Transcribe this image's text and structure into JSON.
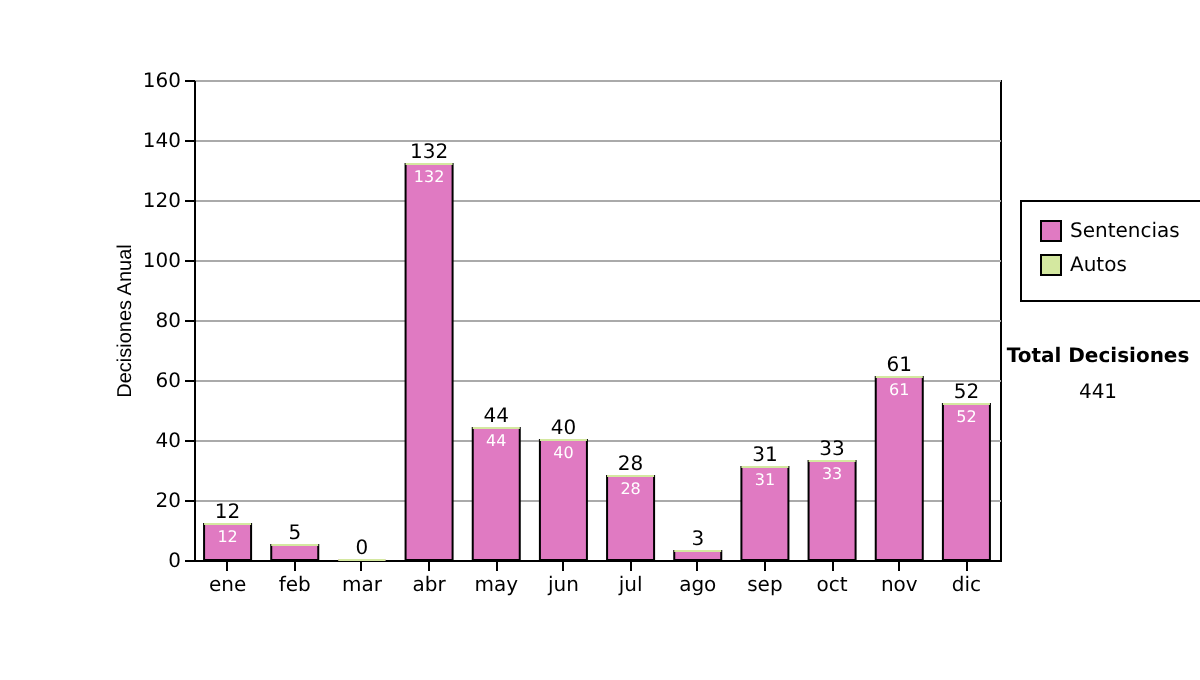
{
  "chart_data": {
    "type": "bar",
    "ylabel": "Decisiones Anual",
    "categories": [
      "ene",
      "feb",
      "mar",
      "abr",
      "may",
      "jun",
      "jul",
      "ago",
      "sep",
      "oct",
      "nov",
      "dic"
    ],
    "series": [
      {
        "name": "Sentencias",
        "color": "#e07ac2",
        "values": [
          12,
          5,
          0,
          132,
          44,
          40,
          28,
          3,
          31,
          33,
          61,
          52
        ],
        "value_labels": [
          "12",
          null,
          null,
          "132",
          "44",
          "40",
          "28",
          null,
          "31",
          "33",
          "61",
          "52"
        ]
      },
      {
        "name": "Autos",
        "color": "#d4e8a0",
        "values": [
          0,
          0,
          0,
          0,
          0,
          0,
          0,
          0,
          0,
          0,
          0,
          0
        ],
        "value_labels": [
          null,
          null,
          null,
          null,
          null,
          null,
          null,
          null,
          null,
          null,
          null,
          null
        ]
      }
    ],
    "stacked": true,
    "totals": [
      "12",
      "5",
      "0",
      "132",
      "44",
      "40",
      "28",
      "3",
      "31",
      "33",
      "61",
      "52"
    ],
    "ylim": [
      0,
      160
    ],
    "yticks": [
      0,
      20,
      40,
      60,
      80,
      100,
      120,
      140,
      160
    ],
    "grid": "y",
    "legend": "right",
    "annotations": [
      "Total Decisiones",
      "441"
    ]
  }
}
